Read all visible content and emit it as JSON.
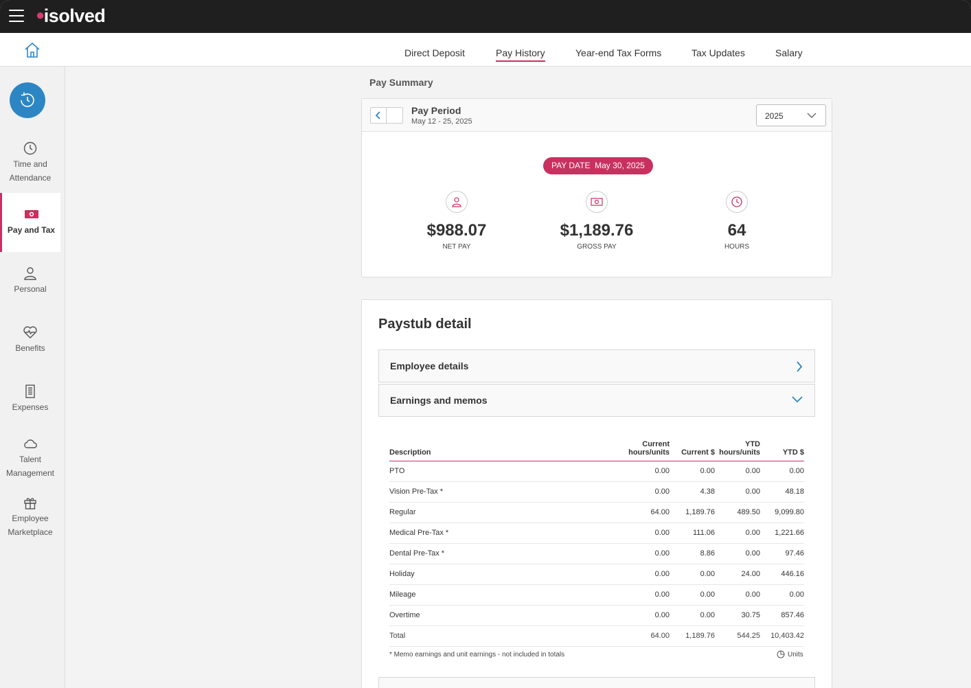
{
  "app": {
    "logo_text": "isolved"
  },
  "tabs": [
    {
      "label": "Direct Deposit",
      "active": false
    },
    {
      "label": "Pay History",
      "active": true
    },
    {
      "label": "Year-end Tax Forms",
      "active": false
    },
    {
      "label": "Tax Updates",
      "active": false
    },
    {
      "label": "Salary",
      "active": false
    }
  ],
  "sidebar": {
    "items": [
      {
        "label": "Time and Attendance",
        "icon": "clock-icon"
      },
      {
        "label": "Pay and Tax",
        "icon": "money-icon",
        "active": true
      },
      {
        "label": "Personal",
        "icon": "person-icon"
      },
      {
        "label": "Benefits",
        "icon": "heart-pulse-icon"
      },
      {
        "label": "Expenses",
        "icon": "receipt-icon"
      },
      {
        "label": "Talent Management",
        "icon": "cloud-icon"
      },
      {
        "label": "Employee Marketplace",
        "icon": "gift-icon"
      }
    ]
  },
  "summary": {
    "section_label": "Pay Summary",
    "period_title": "Pay Period",
    "period_dates": "May 12 - 25, 2025",
    "year": "2025",
    "pay_date_label": "PAY DATE",
    "pay_date": "May 30, 2025",
    "net_pay": "$988.07",
    "net_pay_label": "NET PAY",
    "gross_pay": "$1,189.76",
    "gross_pay_label": "GROSS PAY",
    "hours": "64",
    "hours_label": "HOURS"
  },
  "detail": {
    "title": "Paystub detail",
    "accordions": [
      {
        "label": "Employee details",
        "state": "collapsed"
      },
      {
        "label": "Earnings and memos",
        "state": "expanded"
      }
    ],
    "table": {
      "headers": [
        "Description",
        "Current hours/units",
        "Current $",
        "YTD hours/units",
        "YTD $"
      ],
      "header_lines": [
        [
          "Description"
        ],
        [
          "Current",
          "hours/units"
        ],
        [
          "Current $"
        ],
        [
          "YTD",
          "hours/units"
        ],
        [
          "YTD $"
        ]
      ],
      "rows": [
        [
          "PTO",
          "0.00",
          "0.00",
          "0.00",
          "0.00"
        ],
        [
          "Vision Pre-Tax *",
          "0.00",
          "4.38",
          "0.00",
          "48.18"
        ],
        [
          "Regular",
          "64.00",
          "1,189.76",
          "489.50",
          "9,099.80"
        ],
        [
          "Medical Pre-Tax *",
          "0.00",
          "111.06",
          "0.00",
          "1,221.66"
        ],
        [
          "Dental Pre-Tax *",
          "0.00",
          "8.86",
          "0.00",
          "97.46"
        ],
        [
          "Holiday",
          "0.00",
          "0.00",
          "24.00",
          "446.16"
        ],
        [
          "Mileage",
          "0.00",
          "0.00",
          "0.00",
          "0.00"
        ],
        [
          "Overtime",
          "0.00",
          "0.00",
          "30.75",
          "857.46"
        ]
      ],
      "total": [
        "Total",
        "64.00",
        "1,189.76",
        "544.25",
        "10,403.42"
      ]
    },
    "footnote": "* Memo earnings and unit earnings - not included in totals",
    "units_label": "Units"
  },
  "colors": {
    "accent": "#c8315f",
    "blue": "#2d86c4",
    "topbar": "#1f1f1f"
  }
}
